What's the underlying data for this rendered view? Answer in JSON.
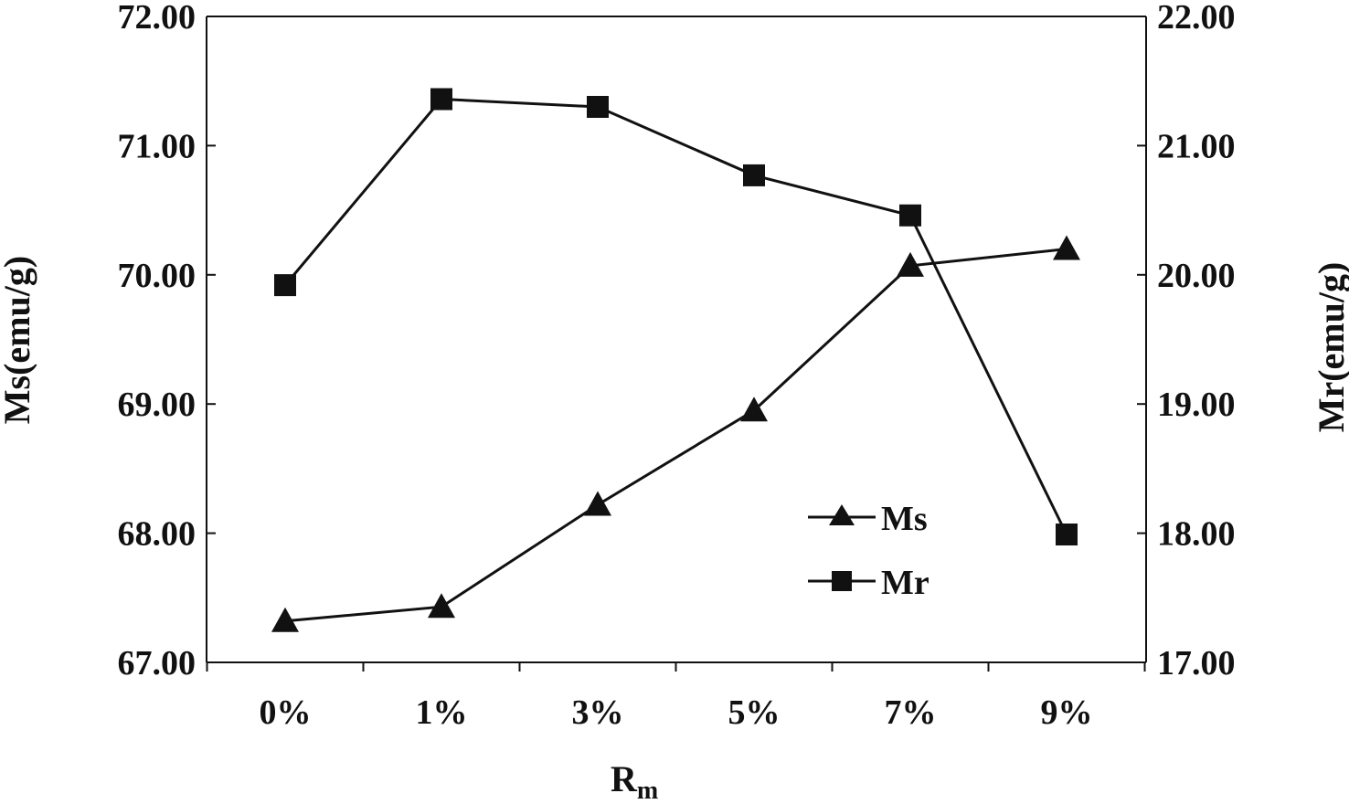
{
  "chart_data": {
    "type": "line",
    "categories": [
      "0%",
      "1%",
      "3%",
      "5%",
      "7%",
      "9%"
    ],
    "xlabel": "R",
    "xlabel_subscript": "m",
    "ylabel_left": "Ms(emu/g)",
    "ylabel_right": "Mr(emu/g)",
    "ylim_left": [
      67,
      72
    ],
    "ylim_right": [
      17,
      22
    ],
    "yticks_left": [
      "67.00",
      "68.00",
      "69.00",
      "70.00",
      "71.00",
      "72.00"
    ],
    "yticks_right": [
      "17.00",
      "18.00",
      "19.00",
      "20.00",
      "21.00",
      "22.00"
    ],
    "grid": false,
    "legend_position": "lower-right",
    "series": [
      {
        "name": "Ms",
        "axis": "left",
        "marker": "triangle",
        "values": [
          67.32,
          67.43,
          68.22,
          68.95,
          70.07,
          70.2
        ]
      },
      {
        "name": "Mr",
        "axis": "right",
        "marker": "square",
        "values": [
          19.92,
          21.36,
          21.3,
          20.77,
          20.46,
          17.99
        ]
      }
    ],
    "colors": {
      "line": "#111111",
      "axis": "#111111",
      "background": "#ffffff"
    }
  }
}
